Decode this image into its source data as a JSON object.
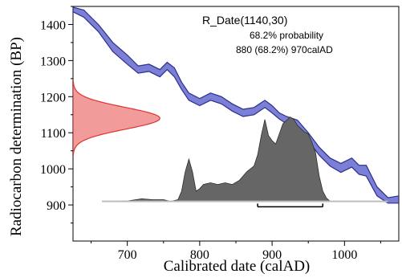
{
  "chart_data": {
    "type": "area",
    "title": "R_Date(1140,30)",
    "annotation_line1": "68.2% probability",
    "annotation_line2": "880 (68.2%) 970calAD",
    "xlabel": "Calibrated date (calAD)",
    "ylabel": "Radiocarbon determination (BP)",
    "xlim": [
      625,
      1075
    ],
    "ylim": [
      800,
      1450
    ],
    "x_ticks": [
      700,
      800,
      900,
      1000
    ],
    "y_ticks": [
      900,
      1000,
      1100,
      1200,
      1300,
      1400
    ],
    "grid": false,
    "colors": {
      "calibration_curve_fill": "#7b7fd6",
      "calibration_curve_edge": "#2c2f8c",
      "radiocarbon_fill": "#f29b9b",
      "radiocarbon_edge": "#e0332f",
      "posterior_fill": "#666666",
      "posterior_edge": "#2e2e2e",
      "range_bar": "#000000"
    },
    "calibration_curve": {
      "x": [
        625,
        640,
        660,
        680,
        700,
        715,
        730,
        745,
        755,
        765,
        775,
        785,
        800,
        815,
        830,
        845,
        860,
        875,
        890,
        900,
        910,
        920,
        935,
        950,
        965,
        980,
        995,
        1010,
        1020,
        1030,
        1045,
        1060,
        1075
      ],
      "upper": [
        1448,
        1440,
        1400,
        1350,
        1315,
        1285,
        1290,
        1275,
        1295,
        1280,
        1240,
        1210,
        1195,
        1210,
        1200,
        1180,
        1165,
        1170,
        1190,
        1175,
        1155,
        1145,
        1135,
        1100,
        1060,
        1030,
        1015,
        1030,
        1010,
        1010,
        950,
        920,
        925
      ],
      "lower": [
        1435,
        1420,
        1380,
        1325,
        1290,
        1265,
        1270,
        1255,
        1275,
        1255,
        1220,
        1190,
        1175,
        1190,
        1180,
        1160,
        1145,
        1150,
        1170,
        1155,
        1138,
        1125,
        1112,
        1078,
        1038,
        1008,
        990,
        1005,
        985,
        980,
        925,
        905,
        905
      ]
    },
    "radiocarbon_density": {
      "mean_bp": 1140,
      "sd_bp": 30,
      "peak_date": 745
    },
    "posterior_density": {
      "x": [
        665,
        700,
        720,
        735,
        750,
        760,
        770,
        775,
        780,
        785,
        790,
        795,
        800,
        805,
        815,
        825,
        835,
        845,
        855,
        865,
        875,
        880,
        885,
        890,
        895,
        900,
        905,
        910,
        915,
        920,
        925,
        930,
        935,
        940,
        945,
        950,
        955,
        960,
        965,
        970,
        975,
        980,
        985,
        1000,
        1030
      ],
      "y": [
        0.0,
        0.005,
        0.03,
        0.02,
        0.02,
        0.0,
        0.02,
        0.12,
        0.35,
        0.5,
        0.35,
        0.12,
        0.15,
        0.2,
        0.22,
        0.2,
        0.22,
        0.2,
        0.25,
        0.35,
        0.42,
        0.55,
        0.78,
        0.97,
        0.78,
        0.72,
        0.68,
        0.8,
        0.92,
        0.96,
        1.0,
        0.97,
        0.9,
        0.86,
        0.82,
        0.8,
        0.7,
        0.58,
        0.3,
        0.12,
        0.04,
        0.0,
        0.0,
        0.0,
        0.0
      ]
    },
    "range_bar": {
      "from": 880,
      "to": 970
    }
  }
}
